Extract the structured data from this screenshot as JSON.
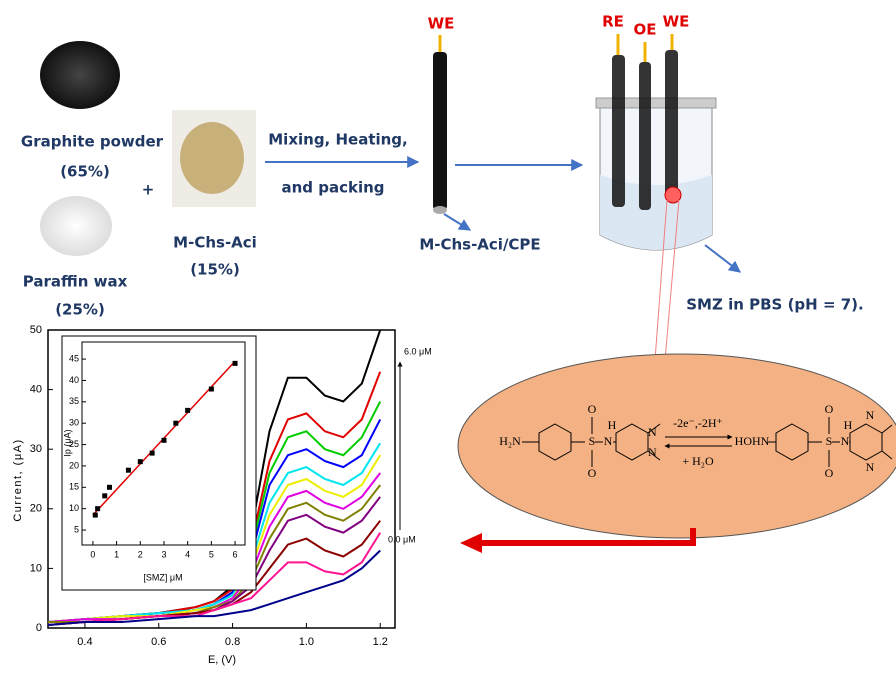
{
  "diagram": {
    "graphite": {
      "label": "Graphite powder",
      "percent": "(65%)"
    },
    "plus": "+",
    "paraffin": {
      "label": "Paraffin wax",
      "percent": "(25%)"
    },
    "modifier": {
      "label": "M-Chs-Aci",
      "percent": "(15%)"
    },
    "step": [
      "Mixing, Heating,",
      "and packing"
    ],
    "electrode": {
      "terminal": "WE",
      "label": "M-Chs-Aci/CPE"
    },
    "cell": {
      "terminals": [
        "RE",
        "OE",
        "WE"
      ],
      "label": "SMZ in PBS (pH = 7)."
    }
  },
  "reaction": {
    "left_labels": [
      "H₂N",
      "S",
      "O",
      "O",
      "N",
      "H",
      "N",
      "N"
    ],
    "conditions": "-2e⁻,-2H⁺",
    "reagent": "+ H₂O",
    "right_labels": [
      "HOHN",
      "S",
      "O",
      "O",
      "N",
      "H",
      "N",
      "N"
    ]
  },
  "voltammogram": {
    "type": "line",
    "x_label": "E, (V)",
    "y_label": "Current, (μA)",
    "xlim": [
      0.3,
      1.24
    ],
    "xticks": [
      0.4,
      0.6,
      0.8,
      {
        "value": 1.0,
        "label": "1.0"
      },
      1.2
    ],
    "ylim": [
      0,
      50
    ],
    "yticks": [
      0,
      10,
      20,
      30,
      40,
      50
    ],
    "x": [
      0.3,
      0.4,
      0.5,
      0.6,
      0.7,
      0.75,
      0.8,
      0.85,
      0.9,
      0.95,
      1.0,
      1.05,
      1.1,
      1.15,
      1.2
    ],
    "series": [
      {
        "color": "#000000",
        "values": [
          1,
          1.5,
          2,
          2.5,
          3.5,
          4.5,
          7,
          16,
          33,
          42,
          42,
          39,
          38,
          41,
          50
        ]
      },
      {
        "color": "#e00000",
        "values": [
          1,
          1.5,
          2,
          2.5,
          3.5,
          4.5,
          6.5,
          14,
          28,
          35,
          36,
          33,
          32,
          35,
          43
        ]
      },
      {
        "color": "#00cc00",
        "values": [
          1,
          1.5,
          2,
          2.5,
          3,
          4,
          6,
          13,
          26,
          32,
          33,
          30,
          29,
          32,
          38
        ]
      },
      {
        "color": "#0000ff",
        "values": [
          1,
          1.5,
          2,
          2.5,
          3,
          4,
          6,
          12,
          24,
          29,
          30,
          28,
          27,
          29,
          35
        ]
      },
      {
        "color": "#00e5ee",
        "values": [
          1,
          1.5,
          2,
          2.5,
          3,
          4,
          5.5,
          11,
          21,
          26,
          27,
          25,
          24,
          26,
          31
        ]
      },
      {
        "color": "#eeee00",
        "values": [
          1,
          1.5,
          2,
          2,
          3,
          3.5,
          5,
          10,
          19,
          24,
          25,
          23,
          22,
          24,
          29
        ]
      },
      {
        "color": "#e000e0",
        "values": [
          1,
          1.5,
          1.5,
          2,
          2.5,
          3.5,
          5,
          9,
          17,
          22,
          23,
          21,
          20,
          22,
          26
        ]
      },
      {
        "color": "#808000",
        "values": [
          1,
          1,
          1.5,
          2,
          2.5,
          3.5,
          4.5,
          8,
          15,
          20,
          21,
          19,
          18,
          20,
          24
        ]
      },
      {
        "color": "#800080",
        "values": [
          0.5,
          1,
          1.5,
          2,
          2.5,
          3,
          4.5,
          7,
          13,
          18,
          19,
          17,
          16,
          18,
          22
        ]
      },
      {
        "color": "#8b0000",
        "values": [
          0.5,
          1,
          1.5,
          2,
          2.5,
          3,
          4,
          6,
          10,
          14,
          15,
          13,
          12,
          14,
          18
        ]
      },
      {
        "color": "#ff1493",
        "values": [
          0.5,
          1,
          1.5,
          2,
          2,
          3,
          4,
          5,
          8,
          11,
          11,
          9.5,
          9,
          11,
          16
        ]
      },
      {
        "color": "#00008b",
        "values": [
          0.5,
          1,
          1,
          1.5,
          2,
          2,
          2.5,
          3,
          4,
          5,
          6,
          7,
          8,
          10,
          13
        ]
      }
    ],
    "annotations": [
      "6.0 μM",
      "0.0 μM"
    ]
  },
  "inset": {
    "type": "scatter",
    "x_label": "[SMZ] μM",
    "y_label": "Ip (μA)",
    "xlim": [
      -0.46,
      6.42
    ],
    "ylim": [
      1.5,
      49
    ],
    "xticks": [
      0,
      1,
      2,
      3,
      4,
      5,
      6
    ],
    "yticks": [
      5,
      10,
      15,
      20,
      25,
      30,
      35,
      40,
      45
    ],
    "x": [
      0.1,
      0.2,
      0.5,
      0.7,
      1.5,
      2,
      2.5,
      3,
      3.5,
      4,
      5,
      6
    ],
    "y": [
      8.5,
      10,
      13,
      15,
      19,
      21,
      23,
      26,
      30,
      33,
      38,
      44
    ],
    "color": "#000000",
    "fit": {
      "color": "#e00000",
      "x": [
        0,
        6
      ],
      "y": [
        8.5,
        44.5
      ]
    }
  }
}
